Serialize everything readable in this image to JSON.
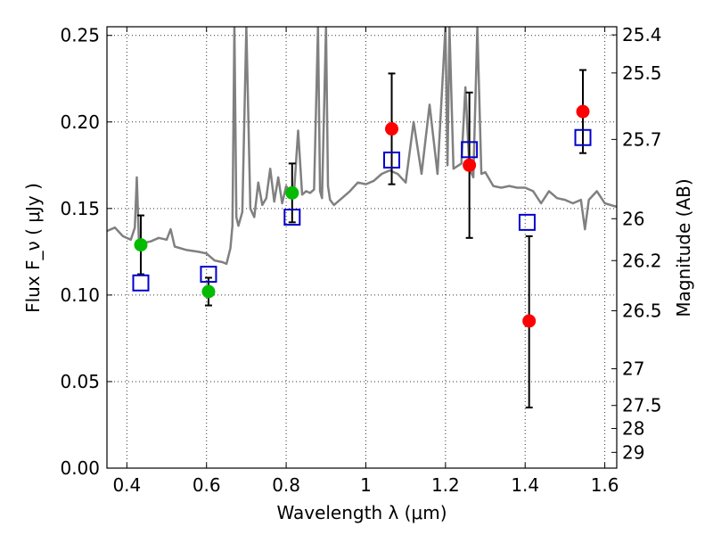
{
  "chart_data": {
    "type": "scatter",
    "title": "",
    "xlabel": "Wavelength λ (μm)",
    "ylabel": "Flux F_ν ( μJy )",
    "y2label": "Magnitude (AB)",
    "xlim": [
      0.35,
      1.63
    ],
    "ylim": [
      0.0,
      0.255
    ],
    "grid": true,
    "x_ticks": [
      0.4,
      0.6,
      0.8,
      1.0,
      1.2,
      1.4,
      1.6
    ],
    "x_tick_labels": [
      "0.4",
      "0.6",
      "0.8",
      "1",
      "1.2",
      "1.4",
      "1.6"
    ],
    "y_ticks": [
      0.0,
      0.05,
      0.1,
      0.15,
      0.2,
      0.25
    ],
    "y_tick_labels": [
      "0.00",
      "0.05",
      "0.10",
      "0.15",
      "0.20",
      "0.25"
    ],
    "y2_ticks": [
      {
        "label": "25.4",
        "flux": 0.2503
      },
      {
        "label": "25.5",
        "flux": 0.2283
      },
      {
        "label": "25.7",
        "flux": 0.1899
      },
      {
        "label": "26",
        "flux": 0.1441
      },
      {
        "label": "26.2",
        "flux": 0.1199
      },
      {
        "label": "26.5",
        "flux": 0.0909
      },
      {
        "label": "27",
        "flux": 0.0574
      },
      {
        "label": "27.5",
        "flux": 0.0362
      },
      {
        "label": "28",
        "flux": 0.0229
      },
      {
        "label": "29",
        "flux": 0.0091
      }
    ],
    "series": [
      {
        "color": "#00bb00",
        "marker": "circle",
        "points": [
          {
            "x": 0.435,
            "y": 0.129,
            "ylo": 0.112,
            "yhi": 0.146
          },
          {
            "x": 0.605,
            "y": 0.102,
            "ylo": 0.094,
            "yhi": 0.11
          },
          {
            "x": 0.815,
            "y": 0.159,
            "ylo": 0.142,
            "yhi": 0.176
          }
        ]
      },
      {
        "color": "#ff0000",
        "marker": "circle",
        "points": [
          {
            "x": 1.065,
            "y": 0.196,
            "ylo": 0.164,
            "yhi": 0.228
          },
          {
            "x": 1.26,
            "y": 0.175,
            "ylo": 0.133,
            "yhi": 0.217
          },
          {
            "x": 1.41,
            "y": 0.085,
            "ylo": 0.035,
            "yhi": 0.134
          },
          {
            "x": 1.545,
            "y": 0.206,
            "ylo": 0.182,
            "yhi": 0.23
          }
        ]
      },
      {
        "color": "#0000cc",
        "marker": "open-square",
        "points": [
          {
            "x": 0.435,
            "y": 0.107
          },
          {
            "x": 0.605,
            "y": 0.112
          },
          {
            "x": 0.815,
            "y": 0.145
          },
          {
            "x": 1.065,
            "y": 0.178
          },
          {
            "x": 1.26,
            "y": 0.184
          },
          {
            "x": 1.405,
            "y": 0.142
          },
          {
            "x": 1.545,
            "y": 0.191
          }
        ]
      },
      {
        "color": "#808080",
        "marker": "line",
        "x": [
          0.35,
          0.37,
          0.39,
          0.41,
          0.42,
          0.425,
          0.43,
          0.44,
          0.46,
          0.48,
          0.5,
          0.51,
          0.52,
          0.55,
          0.58,
          0.6,
          0.62,
          0.64,
          0.65,
          0.66,
          0.665,
          0.67,
          0.675,
          0.68,
          0.69,
          0.7,
          0.71,
          0.72,
          0.73,
          0.74,
          0.75,
          0.76,
          0.77,
          0.78,
          0.79,
          0.8,
          0.81,
          0.82,
          0.83,
          0.84,
          0.85,
          0.86,
          0.87,
          0.88,
          0.885,
          0.89,
          0.9,
          0.905,
          0.91,
          0.92,
          0.94,
          0.96,
          0.98,
          1.0,
          1.02,
          1.04,
          1.06,
          1.08,
          1.1,
          1.12,
          1.14,
          1.16,
          1.18,
          1.2,
          1.205,
          1.21,
          1.22,
          1.24,
          1.25,
          1.26,
          1.27,
          1.28,
          1.29,
          1.3,
          1.32,
          1.34,
          1.36,
          1.38,
          1.4,
          1.42,
          1.44,
          1.46,
          1.48,
          1.5,
          1.52,
          1.54,
          1.55,
          1.56,
          1.58,
          1.6,
          1.63
        ],
        "y": [
          0.137,
          0.139,
          0.134,
          0.132,
          0.139,
          0.168,
          0.132,
          0.13,
          0.131,
          0.133,
          0.132,
          0.138,
          0.128,
          0.126,
          0.125,
          0.124,
          0.12,
          0.119,
          0.118,
          0.127,
          0.14,
          0.255,
          0.145,
          0.14,
          0.148,
          0.255,
          0.15,
          0.145,
          0.165,
          0.152,
          0.156,
          0.173,
          0.154,
          0.168,
          0.153,
          0.163,
          0.159,
          0.16,
          0.195,
          0.158,
          0.16,
          0.159,
          0.161,
          0.255,
          0.16,
          0.156,
          0.255,
          0.163,
          0.155,
          0.152,
          0.156,
          0.16,
          0.165,
          0.164,
          0.166,
          0.17,
          0.172,
          0.17,
          0.165,
          0.2,
          0.17,
          0.21,
          0.17,
          0.255,
          0.175,
          0.255,
          0.173,
          0.176,
          0.22,
          0.173,
          0.168,
          0.255,
          0.17,
          0.171,
          0.163,
          0.162,
          0.163,
          0.162,
          0.162,
          0.16,
          0.153,
          0.16,
          0.156,
          0.155,
          0.153,
          0.155,
          0.138,
          0.155,
          0.16,
          0.153,
          0.151
        ]
      }
    ]
  }
}
